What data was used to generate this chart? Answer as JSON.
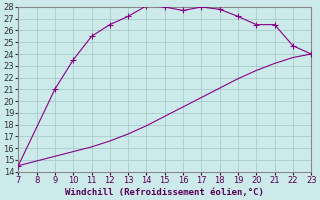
{
  "xlabel": "Windchill (Refroidissement éolien,°C)",
  "ylabel": "",
  "xlim": [
    7,
    23
  ],
  "ylim": [
    14,
    28
  ],
  "xticks": [
    7,
    8,
    9,
    10,
    11,
    12,
    13,
    14,
    15,
    16,
    17,
    18,
    19,
    20,
    21,
    22,
    23
  ],
  "yticks": [
    14,
    15,
    16,
    17,
    18,
    19,
    20,
    21,
    22,
    23,
    24,
    25,
    26,
    27,
    28
  ],
  "background_color": "#cceaea",
  "grid_color": "#aacccc",
  "line_color": "#880088",
  "marker_color": "#880088",
  "upper_curve_x": [
    7,
    9,
    10,
    11,
    12,
    13,
    14,
    15,
    16,
    17,
    18,
    19,
    20,
    21,
    22,
    23
  ],
  "upper_curve_y": [
    14.5,
    21.0,
    23.5,
    25.5,
    26.5,
    27.2,
    28.1,
    28.0,
    27.7,
    28.0,
    27.8,
    27.2,
    26.5,
    26.5,
    24.7,
    24.0
  ],
  "lower_curve_x": [
    7,
    8,
    9,
    10,
    11,
    12,
    13,
    14,
    15,
    16,
    17,
    18,
    19,
    20,
    21,
    22,
    23
  ],
  "lower_curve_y": [
    14.5,
    14.9,
    15.3,
    15.7,
    16.1,
    16.6,
    17.2,
    17.9,
    18.7,
    19.5,
    20.3,
    21.1,
    21.9,
    22.6,
    23.2,
    23.7,
    24.0
  ],
  "title_fontsize": 6,
  "xlabel_fontsize": 6.5,
  "tick_fontsize": 6
}
